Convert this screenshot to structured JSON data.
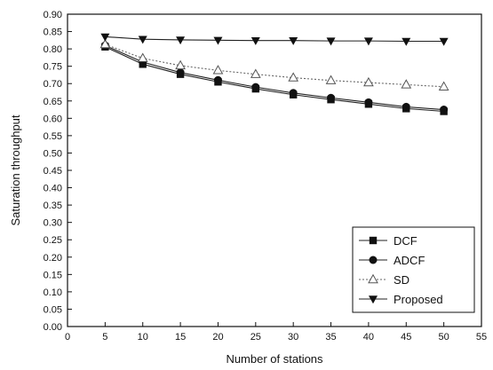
{
  "chart_data": {
    "type": "line",
    "xlabel": "Number of stations",
    "ylabel": "Saturation throughput",
    "xlim": [
      0,
      55
    ],
    "ylim": [
      0.0,
      0.9
    ],
    "xticks": [
      0,
      5,
      10,
      15,
      20,
      25,
      30,
      35,
      40,
      45,
      50,
      55
    ],
    "yticks": [
      0.0,
      0.05,
      0.1,
      0.15,
      0.2,
      0.25,
      0.3,
      0.35,
      0.4,
      0.45,
      0.5,
      0.55,
      0.6,
      0.65,
      0.7,
      0.75,
      0.8,
      0.85,
      0.9
    ],
    "ytick_labels": [
      "0.00",
      "0.05",
      "0.10",
      "0.15",
      "0.20",
      "0.25",
      "0.30",
      "0.35",
      "0.40",
      "0.45",
      "0.50",
      "0.55",
      "0.60",
      "0.65",
      "0.70",
      "0.75",
      "0.80",
      "0.85",
      "0.90"
    ],
    "grid": false,
    "legend_position": "bottom-right",
    "x": [
      5,
      10,
      15,
      20,
      25,
      30,
      35,
      40,
      45,
      50
    ],
    "series": [
      {
        "name": "DCF",
        "marker": "square",
        "line": "solid",
        "values": [
          0.806,
          0.756,
          0.727,
          0.705,
          0.685,
          0.668,
          0.654,
          0.641,
          0.628,
          0.62
        ]
      },
      {
        "name": "ADCF",
        "marker": "circle",
        "line": "solid",
        "values": [
          0.81,
          0.762,
          0.732,
          0.71,
          0.69,
          0.673,
          0.659,
          0.646,
          0.633,
          0.625
        ]
      },
      {
        "name": "SD",
        "marker": "triangle-up-open",
        "line": "dotted",
        "values": [
          0.813,
          0.773,
          0.752,
          0.738,
          0.727,
          0.717,
          0.709,
          0.703,
          0.697,
          0.691
        ]
      },
      {
        "name": "Proposed",
        "marker": "triangle-down",
        "line": "solid",
        "values": [
          0.835,
          0.828,
          0.826,
          0.825,
          0.824,
          0.824,
          0.823,
          0.823,
          0.822,
          0.822
        ]
      }
    ]
  }
}
